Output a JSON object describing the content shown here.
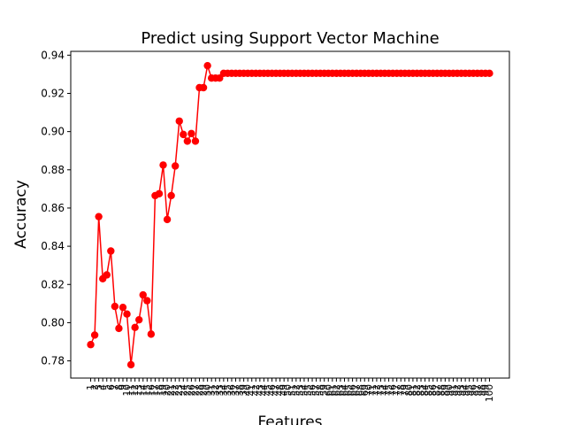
{
  "chart_data": {
    "type": "line",
    "title": "Predict using Support Vector Machine",
    "xlabel": "Features",
    "ylabel": "Accuracy",
    "ylim": [
      0.771,
      0.942
    ],
    "yticks": [
      "0.78",
      "0.80",
      "0.82",
      "0.84",
      "0.86",
      "0.88",
      "0.90",
      "0.92",
      "0.94"
    ],
    "grid": false,
    "line_color": "#ff0000",
    "marker_color": "#ff0000",
    "x": [
      1,
      2,
      3,
      4,
      5,
      6,
      7,
      8,
      9,
      10,
      11,
      12,
      13,
      14,
      15,
      16,
      17,
      18,
      19,
      20,
      21,
      22,
      23,
      24,
      25,
      26,
      27,
      28,
      29,
      30,
      31,
      32,
      33,
      34,
      35,
      36,
      37,
      38,
      39,
      40,
      41,
      42,
      43,
      44,
      45,
      46,
      47,
      48,
      49,
      50,
      51,
      52,
      53,
      54,
      55,
      56,
      57,
      58,
      59,
      60,
      61,
      62,
      63,
      64,
      65,
      66,
      67,
      68,
      69,
      70,
      71,
      72,
      73,
      74,
      75,
      76,
      77,
      78,
      79,
      80,
      81,
      82,
      83,
      84,
      85,
      86,
      87,
      88,
      89,
      90,
      91,
      92,
      93,
      94,
      95,
      96,
      97,
      98,
      99,
      100
    ],
    "series": [
      {
        "values": [
          0.7885,
          0.7935,
          0.8555,
          0.823,
          0.825,
          0.8375,
          0.8085,
          0.797,
          0.808,
          0.8045,
          0.778,
          0.7975,
          0.8015,
          0.8145,
          0.8115,
          0.794,
          0.8665,
          0.8675,
          0.8825,
          0.854,
          0.8665,
          0.882,
          0.9055,
          0.8985,
          0.895,
          0.899,
          0.895,
          0.923,
          0.923,
          0.9345,
          0.928,
          0.928,
          0.928,
          0.9305,
          0.9305,
          0.9305,
          0.9305,
          0.9305,
          0.9305,
          0.9305,
          0.9305,
          0.9305,
          0.9305,
          0.9305,
          0.9305,
          0.9305,
          0.9305,
          0.9305,
          0.9305,
          0.9305,
          0.9305,
          0.9305,
          0.9305,
          0.9305,
          0.9305,
          0.9305,
          0.9305,
          0.9305,
          0.9305,
          0.9305,
          0.9305,
          0.9305,
          0.9305,
          0.9305,
          0.9305,
          0.9305,
          0.9305,
          0.9305,
          0.9305,
          0.9305,
          0.9305,
          0.9305,
          0.9305,
          0.9305,
          0.9305,
          0.9305,
          0.9305,
          0.9305,
          0.9305,
          0.9305,
          0.9305,
          0.9305,
          0.9305,
          0.9305,
          0.9305,
          0.9305,
          0.9305,
          0.9305,
          0.9305,
          0.9305,
          0.9305,
          0.9305,
          0.9305,
          0.9305,
          0.9305,
          0.9305,
          0.9305,
          0.9305,
          0.9305,
          0.9305
        ]
      }
    ]
  }
}
